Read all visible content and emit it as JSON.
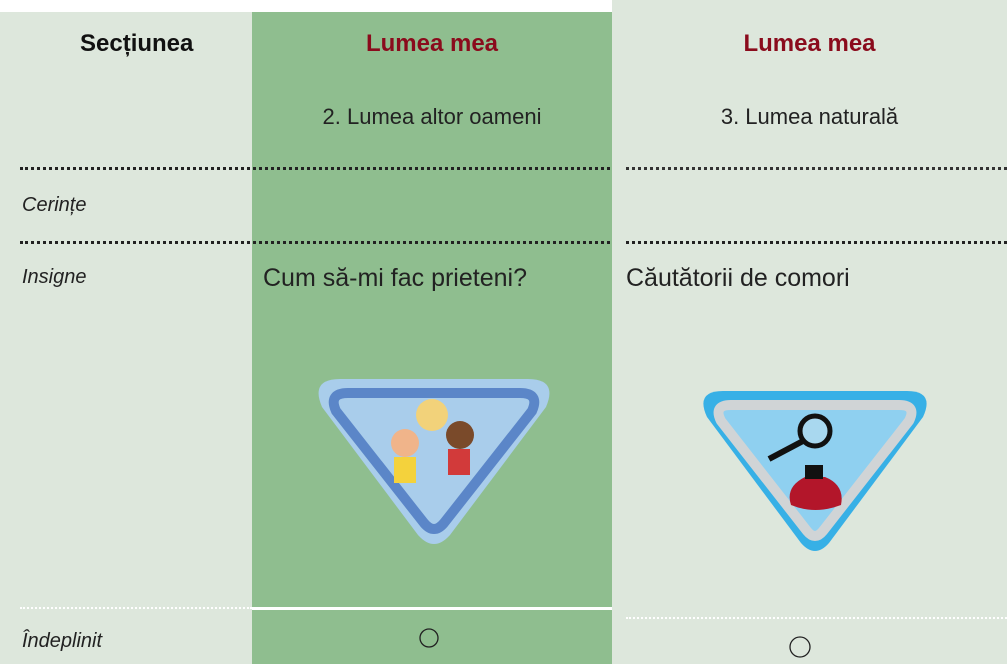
{
  "table": {
    "header": [
      "Secțiunea",
      "Lumea mea",
      "Lumea mea"
    ],
    "subheader": [
      "2. Lumea altor oameni",
      "3. Lumea naturală"
    ],
    "rows": [
      [
        "Cerințe"
      ],
      [
        "Insigne",
        "Cum să-mi fac prieteni?",
        "Căutătorii de comori"
      ],
      [
        "Îndeplinit"
      ]
    ]
  }
}
